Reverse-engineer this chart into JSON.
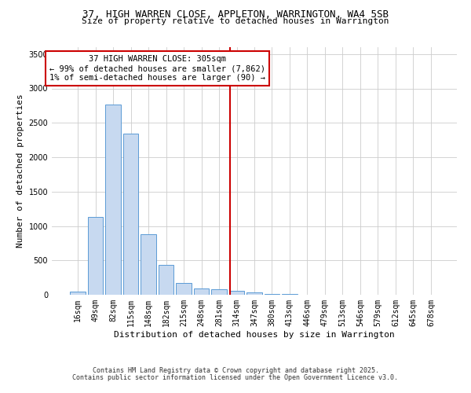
{
  "title": "37, HIGH WARREN CLOSE, APPLETON, WARRINGTON, WA4 5SB",
  "subtitle": "Size of property relative to detached houses in Warrington",
  "xlabel": "Distribution of detached houses by size in Warrington",
  "ylabel": "Number of detached properties",
  "bar_labels": [
    "16sqm",
    "49sqm",
    "82sqm",
    "115sqm",
    "148sqm",
    "182sqm",
    "215sqm",
    "248sqm",
    "281sqm",
    "314sqm",
    "347sqm",
    "380sqm",
    "413sqm",
    "446sqm",
    "479sqm",
    "513sqm",
    "546sqm",
    "579sqm",
    "612sqm",
    "645sqm",
    "678sqm"
  ],
  "bar_values": [
    45,
    1130,
    2770,
    2340,
    880,
    430,
    170,
    95,
    75,
    55,
    30,
    15,
    10,
    5,
    3,
    2,
    2,
    1,
    1,
    0,
    0
  ],
  "bar_color": "#c7d9f0",
  "bar_edge_color": "#5b9bd5",
  "background_color": "#ffffff",
  "grid_color": "#cccccc",
  "vline_x_index": 8.62,
  "vline_color": "#cc0000",
  "annotation_title": "37 HIGH WARREN CLOSE: 305sqm",
  "annotation_line1": "← 99% of detached houses are smaller (7,862)",
  "annotation_line2": "1% of semi-detached houses are larger (90) →",
  "annotation_box_color": "#cc0000",
  "ylim": [
    0,
    3600
  ],
  "yticks": [
    0,
    500,
    1000,
    1500,
    2000,
    2500,
    3000,
    3500
  ],
  "footnote1": "Contains HM Land Registry data © Crown copyright and database right 2025.",
  "footnote2": "Contains public sector information licensed under the Open Government Licence v3.0.",
  "title_fontsize": 9,
  "subtitle_fontsize": 8,
  "axis_label_fontsize": 8,
  "tick_fontsize": 7,
  "annotation_fontsize": 7.5,
  "footnote_fontsize": 6
}
